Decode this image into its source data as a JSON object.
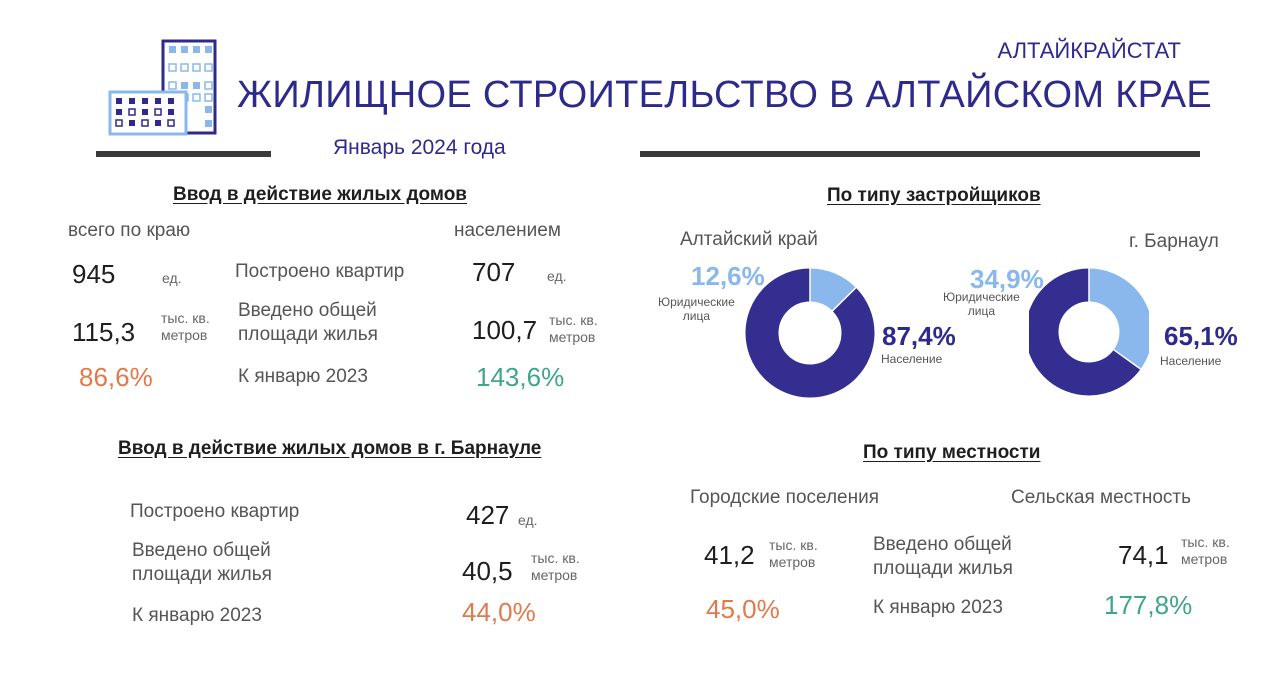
{
  "header": {
    "organization": "АЛТАЙКРАЙСТАТ",
    "title": "ЖИЛИЩНОЕ СТРОИТЕЛЬСТВО В АЛТАЙСКОМ КРАЕ",
    "period": "Январь 2024 года"
  },
  "region_block": {
    "heading": "Ввод в действие жилых домов",
    "col_total": "всего по краю",
    "col_population": "населением",
    "rows": {
      "apartments": {
        "label": "Построено квартир",
        "total_value": "945",
        "total_unit": "ед.",
        "pop_value": "707",
        "pop_unit": "ед."
      },
      "area": {
        "label_line1": "Введено общей",
        "label_line2": "площади  жилья",
        "total_value": "115,3",
        "total_unit_line1": "тыс. кв.",
        "total_unit_line2": "метров",
        "pop_value": "100,7",
        "pop_unit_line1": "тыс. кв.",
        "pop_unit_line2": "метров"
      },
      "compare": {
        "label": "К январю  2023",
        "total_value": "86,6%",
        "pop_value": "143,6%"
      }
    }
  },
  "barnaul_block": {
    "heading": "Ввод в действие жилых домов в г. Барнауле",
    "apartments_label": "Построено  квартир",
    "apartments_value": "427",
    "apartments_unit": "ед.",
    "area_label_line1": "Введено общей",
    "area_label_line2": "площади  жилья",
    "area_value": "40,5",
    "area_unit_line1": "тыс. кв.",
    "area_unit_line2": "метров",
    "compare_label": "К январю  2023",
    "compare_value": "44,0%"
  },
  "developers_block": {
    "heading": "По типу  застройщиков",
    "legal_label_line1": "Юридические",
    "legal_label_line2": "лица",
    "population_label": "Население",
    "colors": {
      "legal": "#8ab8ec",
      "population": "#332e8f"
    }
  },
  "chart_data": [
    {
      "type": "pie",
      "title": "Алтайский  край",
      "categories": [
        "Юридические лица",
        "Население"
      ],
      "values": [
        12.6,
        87.4
      ],
      "value_labels": [
        "12,6%",
        "87,4%"
      ]
    },
    {
      "type": "pie",
      "title": "г. Барнаул",
      "categories": [
        "Юридические лица",
        "Население"
      ],
      "values": [
        34.9,
        65.1
      ],
      "value_labels": [
        "34,9%",
        "65,1%"
      ]
    }
  ],
  "locality_block": {
    "heading": "По типу  местности",
    "urban_label": "Городские  поселения",
    "rural_label": "Сельская  местность",
    "area_label_line1": "Введено общей",
    "area_label_line2": "площади  жилья",
    "compare_label": "К январю  2023",
    "urban_value": "41,2",
    "urban_unit_line1": "тыс. кв.",
    "urban_unit_line2": "метров",
    "urban_compare": "45,0%",
    "rural_value": "74,1",
    "rural_unit_line1": "тыс. кв.",
    "rural_unit_line2": "метров",
    "rural_compare": "177,8%"
  }
}
